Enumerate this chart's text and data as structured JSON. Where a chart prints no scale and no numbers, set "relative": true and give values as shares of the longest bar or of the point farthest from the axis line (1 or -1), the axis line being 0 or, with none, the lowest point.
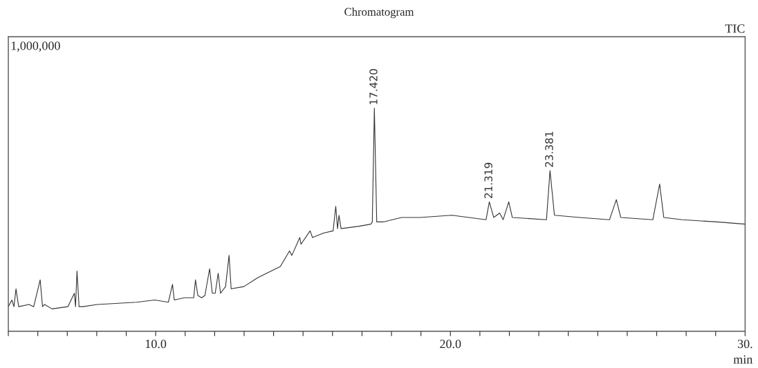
{
  "chart_data": {
    "type": "line",
    "title": "Chromatogram",
    "xlabel": "min",
    "relative": true,
    "xlim": [
      5,
      30
    ],
    "xticks": [
      {
        "value": 5,
        "label": null
      },
      {
        "value": 6,
        "label": null
      },
      {
        "value": 7,
        "label": null
      },
      {
        "value": 8,
        "label": null
      },
      {
        "value": 9,
        "label": null
      },
      {
        "value": 10,
        "label": "10.0"
      },
      {
        "value": 11,
        "label": null
      },
      {
        "value": 12,
        "label": null
      },
      {
        "value": 13,
        "label": null
      },
      {
        "value": 14,
        "label": null
      },
      {
        "value": 15,
        "label": null
      },
      {
        "value": 16,
        "label": null
      },
      {
        "value": 17,
        "label": null
      },
      {
        "value": 18,
        "label": null
      },
      {
        "value": 19,
        "label": null
      },
      {
        "value": 20,
        "label": "20.0"
      },
      {
        "value": 21,
        "label": null
      },
      {
        "value": 22,
        "label": null
      },
      {
        "value": 23,
        "label": null
      },
      {
        "value": 24,
        "label": null
      },
      {
        "value": 25,
        "label": null
      },
      {
        "value": 26,
        "label": null
      },
      {
        "value": 27,
        "label": null
      },
      {
        "value": 28,
        "label": null
      },
      {
        "value": 29,
        "label": null
      },
      {
        "value": 30,
        "label": "30."
      }
    ],
    "series": [
      {
        "color": "#333333",
        "x": [
          5.0,
          5.12,
          5.19,
          5.26,
          5.35,
          5.7,
          5.86,
          6.08,
          6.16,
          6.23,
          6.48,
          7.02,
          7.24,
          7.28,
          7.33,
          7.4,
          7.53,
          8.02,
          9.35,
          9.97,
          10.43,
          10.57,
          10.63,
          10.98,
          11.29,
          11.35,
          11.43,
          11.56,
          11.67,
          11.83,
          11.92,
          12.02,
          12.12,
          12.2,
          12.37,
          12.49,
          12.56,
          12.99,
          13.46,
          13.92,
          14.23,
          14.54,
          14.62,
          14.89,
          14.93,
          15.24,
          15.32,
          15.7,
          16.02,
          16.11,
          16.17,
          16.22,
          16.29,
          16.87,
          17.3,
          17.35,
          17.42,
          17.5,
          17.72,
          18.34,
          18.96,
          20.05,
          21.21,
          21.32,
          21.47,
          21.67,
          21.79,
          21.98,
          22.1,
          23.26,
          23.38,
          23.53,
          24.39,
          25.4,
          25.63,
          25.78,
          26.87,
          27.1,
          27.24,
          27.87,
          29.04,
          30.0
        ],
        "values": [
          0.11,
          0.14,
          0.11,
          0.19,
          0.11,
          0.12,
          0.11,
          0.23,
          0.11,
          0.12,
          0.1,
          0.11,
          0.17,
          0.11,
          0.27,
          0.11,
          0.11,
          0.12,
          0.13,
          0.14,
          0.13,
          0.21,
          0.14,
          0.15,
          0.15,
          0.23,
          0.16,
          0.15,
          0.16,
          0.28,
          0.17,
          0.17,
          0.26,
          0.17,
          0.2,
          0.34,
          0.19,
          0.2,
          0.24,
          0.27,
          0.29,
          0.36,
          0.34,
          0.42,
          0.39,
          0.45,
          0.42,
          0.44,
          0.45,
          0.56,
          0.46,
          0.52,
          0.46,
          0.47,
          0.48,
          0.49,
          1.0,
          0.49,
          0.49,
          0.51,
          0.51,
          0.52,
          0.5,
          0.58,
          0.51,
          0.53,
          0.5,
          0.58,
          0.51,
          0.5,
          0.72,
          0.52,
          0.51,
          0.5,
          0.59,
          0.51,
          0.5,
          0.66,
          0.51,
          0.5,
          0.49,
          0.48
        ]
      }
    ],
    "annotations": [
      "1,000,000",
      "TIC",
      {
        "text": "17.420",
        "x": 17.42,
        "y": 1.0
      },
      {
        "text": "21.319",
        "x": 21.32,
        "y": 0.58
      },
      {
        "text": "23.381",
        "x": 23.38,
        "y": 0.72
      }
    ]
  }
}
